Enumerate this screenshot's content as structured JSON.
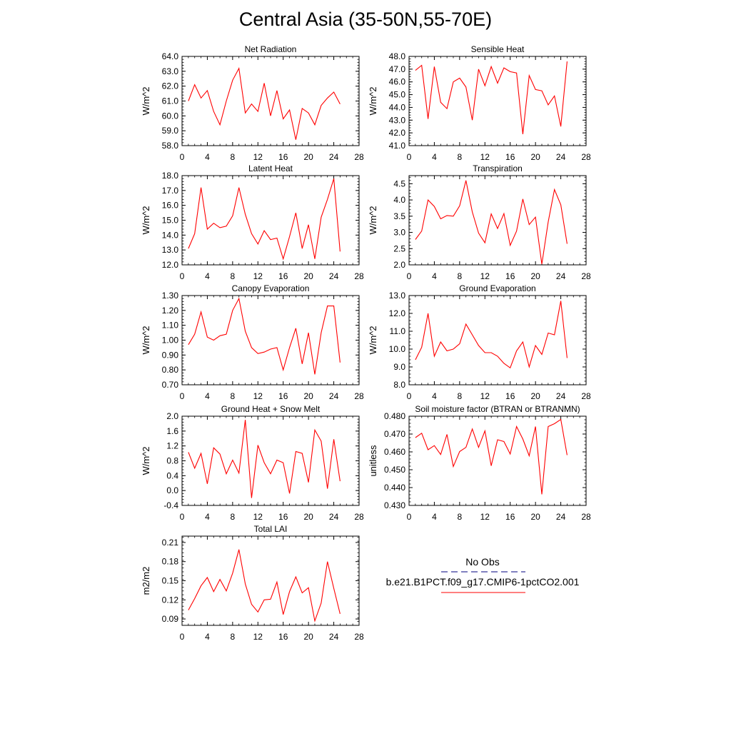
{
  "title": "Central Asia (35-50N,55-70E)",
  "legend": {
    "obs_label": "No Obs",
    "model_label": "b.e21.B1PCT.f09_g17.CMIP6-1pctCO2.001",
    "obs_color": "#000080",
    "model_color": "#ff0000"
  },
  "chart_data": [
    {
      "type": "line",
      "title": "Net Radiation",
      "ylabel": "W/m^2",
      "xlim": [
        0,
        28
      ],
      "ylim": [
        58,
        64
      ],
      "xticks": [
        0,
        4,
        8,
        12,
        16,
        20,
        24,
        28
      ],
      "yticks": [
        58,
        59,
        60,
        61,
        62,
        63,
        64
      ],
      "yticklabels": [
        "58.0",
        "59.0",
        "60.0",
        "61.0",
        "62.0",
        "63.0",
        "64.0"
      ],
      "x": [
        1,
        2,
        3,
        4,
        5,
        6,
        7,
        8,
        9,
        10,
        11,
        12,
        13,
        14,
        15,
        16,
        17,
        18,
        19,
        20,
        21,
        22,
        23,
        24,
        25
      ],
      "series": [
        {
          "values": [
            61.0,
            62.1,
            61.2,
            61.7,
            60.3,
            59.4,
            61.0,
            62.4,
            63.2,
            60.2,
            60.8,
            60.3,
            62.2,
            60.0,
            61.7,
            59.8,
            60.4,
            58.4,
            60.5,
            60.2,
            59.4,
            60.7,
            61.2,
            61.6,
            60.8
          ]
        }
      ]
    },
    {
      "type": "line",
      "title": "Sensible Heat",
      "ylabel": "W/m^2",
      "xlim": [
        0,
        28
      ],
      "ylim": [
        41,
        48
      ],
      "xticks": [
        0,
        4,
        8,
        12,
        16,
        20,
        24,
        28
      ],
      "yticks": [
        41,
        42,
        43,
        44,
        45,
        46,
        47,
        48
      ],
      "yticklabels": [
        "41.0",
        "42.0",
        "43.0",
        "44.0",
        "45.0",
        "46.0",
        "47.0",
        "48.0"
      ],
      "x": [
        1,
        2,
        3,
        4,
        5,
        6,
        7,
        8,
        9,
        10,
        11,
        12,
        13,
        14,
        15,
        16,
        17,
        18,
        19,
        20,
        21,
        22,
        23,
        24,
        25
      ],
      "series": [
        {
          "values": [
            46.9,
            47.3,
            43.1,
            47.2,
            44.4,
            43.9,
            46.0,
            46.3,
            45.6,
            43.0,
            47.0,
            45.7,
            47.2,
            45.9,
            47.1,
            46.8,
            46.7,
            41.9,
            46.5,
            45.4,
            45.3,
            44.2,
            44.9,
            42.5,
            47.6
          ]
        }
      ]
    },
    {
      "type": "line",
      "title": "Latent Heat",
      "ylabel": "W/m^2",
      "xlim": [
        0,
        28
      ],
      "ylim": [
        12,
        18
      ],
      "xticks": [
        0,
        4,
        8,
        12,
        16,
        20,
        24,
        28
      ],
      "yticks": [
        12,
        13,
        14,
        15,
        16,
        17,
        18
      ],
      "yticklabels": [
        "12.0",
        "13.0",
        "14.0",
        "15.0",
        "16.0",
        "17.0",
        "18.0"
      ],
      "x": [
        1,
        2,
        3,
        4,
        5,
        6,
        7,
        8,
        9,
        10,
        11,
        12,
        13,
        14,
        15,
        16,
        17,
        18,
        19,
        20,
        21,
        22,
        23,
        24,
        25
      ],
      "series": [
        {
          "values": [
            13.1,
            14.1,
            17.2,
            14.4,
            14.8,
            14.5,
            14.6,
            15.3,
            17.2,
            15.4,
            14.1,
            13.4,
            14.3,
            13.7,
            13.8,
            12.4,
            13.9,
            15.5,
            13.1,
            14.7,
            12.4,
            15.2,
            16.4,
            17.8,
            12.9
          ]
        }
      ]
    },
    {
      "type": "line",
      "title": "Transpiration",
      "ylabel": "W/m^2",
      "xlim": [
        0,
        28
      ],
      "ylim": [
        2.0,
        4.75
      ],
      "xticks": [
        0,
        4,
        8,
        12,
        16,
        20,
        24,
        28
      ],
      "yticks": [
        2.0,
        2.5,
        3.0,
        3.5,
        4.0,
        4.5
      ],
      "yticklabels": [
        "2.0",
        "2.5",
        "3.0",
        "3.5",
        "4.0",
        "4.5"
      ],
      "x": [
        1,
        2,
        3,
        4,
        5,
        6,
        7,
        8,
        9,
        10,
        11,
        12,
        13,
        14,
        15,
        16,
        17,
        18,
        19,
        20,
        21,
        22,
        23,
        24,
        25
      ],
      "series": [
        {
          "values": [
            2.78,
            3.04,
            4.0,
            3.8,
            3.42,
            3.52,
            3.5,
            3.82,
            4.6,
            3.63,
            2.98,
            2.68,
            3.57,
            3.12,
            3.58,
            2.6,
            3.04,
            4.03,
            3.24,
            3.47,
            2.02,
            3.32,
            4.32,
            3.85,
            2.65
          ]
        }
      ]
    },
    {
      "type": "line",
      "title": "Canopy Evaporation",
      "ylabel": "W/m^2",
      "xlim": [
        0,
        28
      ],
      "ylim": [
        0.7,
        1.3
      ],
      "xticks": [
        0,
        4,
        8,
        12,
        16,
        20,
        24,
        28
      ],
      "yticks": [
        0.7,
        0.8,
        0.9,
        1.0,
        1.1,
        1.2,
        1.3
      ],
      "yticklabels": [
        "0.70",
        "0.80",
        "0.90",
        "1.00",
        "1.10",
        "1.20",
        "1.30"
      ],
      "x": [
        1,
        2,
        3,
        4,
        5,
        6,
        7,
        8,
        9,
        10,
        11,
        12,
        13,
        14,
        15,
        16,
        17,
        18,
        19,
        20,
        21,
        22,
        23,
        24,
        25
      ],
      "series": [
        {
          "values": [
            0.97,
            1.04,
            1.19,
            1.02,
            1.0,
            1.03,
            1.04,
            1.2,
            1.28,
            1.06,
            0.95,
            0.91,
            0.92,
            0.94,
            0.95,
            0.8,
            0.95,
            1.08,
            0.84,
            1.05,
            0.77,
            1.05,
            1.23,
            1.23,
            0.85
          ]
        }
      ]
    },
    {
      "type": "line",
      "title": "Ground Evaporation",
      "ylabel": "W/m^2",
      "xlim": [
        0,
        28
      ],
      "ylim": [
        8,
        13
      ],
      "xticks": [
        0,
        4,
        8,
        12,
        16,
        20,
        24,
        28
      ],
      "yticks": [
        8,
        9,
        10,
        11,
        12,
        13
      ],
      "yticklabels": [
        "8.0",
        "9.0",
        "10.0",
        "11.0",
        "12.0",
        "13.0"
      ],
      "x": [
        1,
        2,
        3,
        4,
        5,
        6,
        7,
        8,
        9,
        10,
        11,
        12,
        13,
        14,
        15,
        16,
        17,
        18,
        19,
        20,
        21,
        22,
        23,
        24,
        25
      ],
      "series": [
        {
          "values": [
            9.4,
            10.1,
            12.0,
            9.6,
            10.4,
            9.9,
            10.0,
            10.3,
            11.4,
            10.8,
            10.2,
            9.8,
            9.8,
            9.6,
            9.2,
            8.95,
            9.9,
            10.4,
            9.0,
            10.2,
            9.7,
            10.9,
            10.8,
            12.7,
            9.5
          ]
        }
      ]
    },
    {
      "type": "line",
      "title": "Ground Heat + Snow Melt",
      "ylabel": "W/m^2",
      "xlim": [
        0,
        28
      ],
      "ylim": [
        -0.4,
        2.0
      ],
      "xticks": [
        0,
        4,
        8,
        12,
        16,
        20,
        24,
        28
      ],
      "yticks": [
        -0.4,
        0.0,
        0.4,
        0.8,
        1.2,
        1.6,
        2.0
      ],
      "yticklabels": [
        "-0.4",
        "0.0",
        "0.4",
        "0.8",
        "1.2",
        "1.6",
        "2.0"
      ],
      "x": [
        1,
        2,
        3,
        4,
        5,
        6,
        7,
        8,
        9,
        10,
        11,
        12,
        13,
        14,
        15,
        16,
        17,
        18,
        19,
        20,
        21,
        22,
        23,
        24,
        25
      ],
      "series": [
        {
          "values": [
            1.03,
            0.6,
            1.0,
            0.18,
            1.15,
            0.98,
            0.45,
            0.82,
            0.47,
            1.9,
            -0.2,
            1.22,
            0.75,
            0.45,
            0.82,
            0.75,
            -0.08,
            1.05,
            1.0,
            0.22,
            1.63,
            1.33,
            0.05,
            1.38,
            0.25
          ]
        }
      ]
    },
    {
      "type": "line",
      "title": "Soil moisture factor (BTRAN or BTRANMN)",
      "ylabel": "unitless",
      "xlim": [
        0,
        28
      ],
      "ylim": [
        0.43,
        0.48
      ],
      "xticks": [
        0,
        4,
        8,
        12,
        16,
        20,
        24,
        28
      ],
      "yticks": [
        0.43,
        0.44,
        0.45,
        0.46,
        0.47,
        0.48
      ],
      "yticklabels": [
        "0.430",
        "0.440",
        "0.450",
        "0.460",
        "0.470",
        "0.480"
      ],
      "x": [
        1,
        2,
        3,
        4,
        5,
        6,
        7,
        8,
        9,
        10,
        11,
        12,
        13,
        14,
        15,
        16,
        17,
        18,
        19,
        20,
        21,
        22,
        23,
        24,
        25
      ],
      "series": [
        {
          "values": [
            0.468,
            0.4705,
            0.4612,
            0.4635,
            0.4585,
            0.4698,
            0.4518,
            0.4602,
            0.4625,
            0.4728,
            0.4625,
            0.4718,
            0.4522,
            0.4668,
            0.4658,
            0.4588,
            0.4742,
            0.4672,
            0.4578,
            0.4742,
            0.4362,
            0.4742,
            0.4758,
            0.4782,
            0.4582
          ]
        }
      ]
    },
    {
      "type": "line",
      "title": "Total LAI",
      "ylabel": "m2/m2",
      "xlim": [
        0,
        28
      ],
      "ylim": [
        0.08,
        0.22
      ],
      "xticks": [
        0,
        4,
        8,
        12,
        16,
        20,
        24,
        28
      ],
      "yticks": [
        0.09,
        0.12,
        0.15,
        0.18,
        0.21
      ],
      "yticklabels": [
        "0.09",
        "0.12",
        "0.15",
        "0.18",
        "0.21"
      ],
      "x": [
        1,
        2,
        3,
        4,
        5,
        6,
        7,
        8,
        9,
        10,
        11,
        12,
        13,
        14,
        15,
        16,
        17,
        18,
        19,
        20,
        21,
        22,
        23,
        24,
        25
      ],
      "series": [
        {
          "values": [
            0.104,
            0.122,
            0.142,
            0.155,
            0.133,
            0.152,
            0.134,
            0.162,
            0.199,
            0.145,
            0.113,
            0.101,
            0.12,
            0.121,
            0.148,
            0.097,
            0.133,
            0.156,
            0.131,
            0.139,
            0.087,
            0.115,
            0.18,
            0.138,
            0.098
          ]
        }
      ]
    }
  ]
}
